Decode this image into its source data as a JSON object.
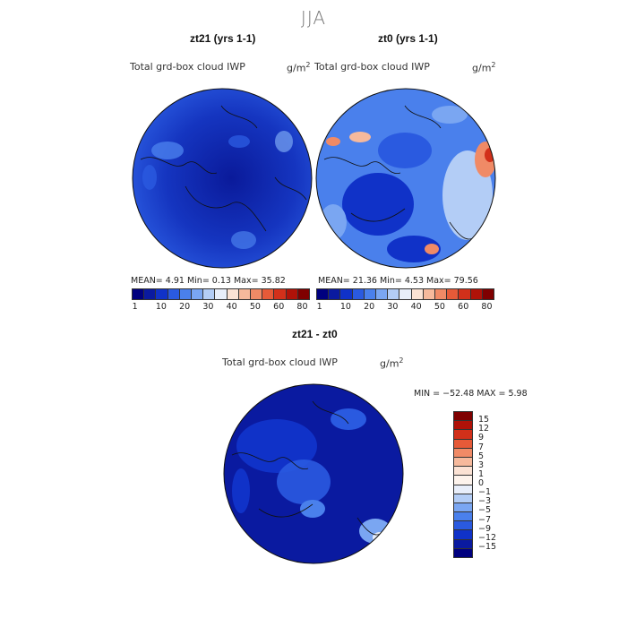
{
  "suptitle": "JJA",
  "panels": [
    {
      "title": "zt21 (yrs 1-1)",
      "varname": "Total grd-box cloud IWP",
      "units": "g/m",
      "units_exp": "2",
      "stats": "MEAN=    4.91   Min=    0.13   Max=   35.82"
    },
    {
      "title": "zt0 (yrs 1-1)",
      "varname": "Total grd-box cloud IWP",
      "units": "g/m",
      "units_exp": "2",
      "stats": "MEAN=   21.36   Min=    4.53   Max=   79.56"
    },
    {
      "title": "zt21 - zt0",
      "varname": "Total grd-box cloud IWP",
      "units": "g/m",
      "units_exp": "2",
      "stats": "MIN = −52.48  MAX =    5.98"
    }
  ],
  "colorbar_abs": {
    "colors": [
      "#00007f",
      "#0a1aa0",
      "#1032c8",
      "#2a5ae0",
      "#4a80ec",
      "#7aa6f2",
      "#b3cdf6",
      "#e8eefa",
      "#fbe2d4",
      "#f6b99c",
      "#f08a66",
      "#e65a38",
      "#d2301a",
      "#b01208",
      "#7f0000"
    ],
    "labels": [
      "1",
      "10",
      "20",
      "30",
      "40",
      "50",
      "60",
      "80"
    ]
  },
  "colorbar_diff": {
    "colors": [
      "#7f0000",
      "#b01208",
      "#d2301a",
      "#e65a38",
      "#f08a66",
      "#f6b99c",
      "#fbe2d4",
      "#fdf3ec",
      "#e8eefa",
      "#b3cdf6",
      "#7aa6f2",
      "#4a80ec",
      "#2a5ae0",
      "#1032c8",
      "#0a1aa0",
      "#00007f"
    ],
    "labels": [
      "15",
      "12",
      "9",
      "7",
      "5",
      "3",
      "1",
      "0",
      "−1",
      "−3",
      "−5",
      "−7",
      "−9",
      "−12",
      "−15"
    ]
  }
}
